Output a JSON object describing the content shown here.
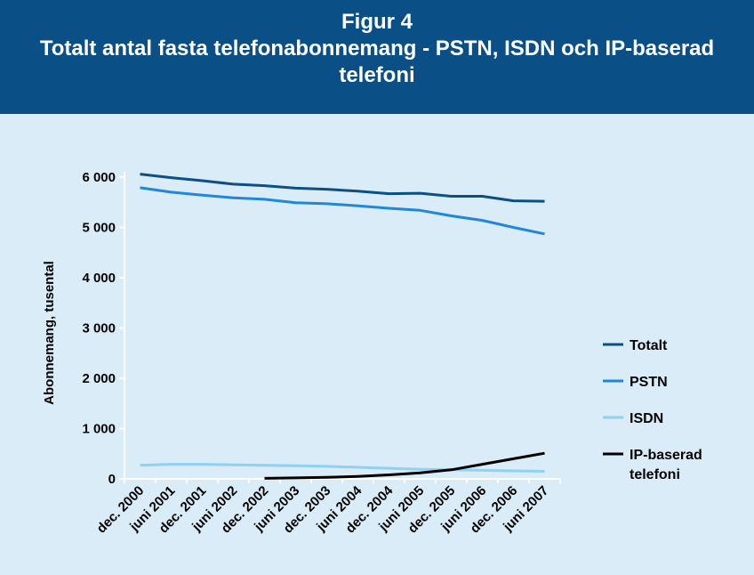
{
  "header": {
    "title": "Figur 4",
    "subtitle": "Totalt antal fasta telefonabonnemang - PSTN, ISDN och IP-baserad telefoni"
  },
  "colors": {
    "header_bg": "#0a4f86",
    "background": "#d9ecf8",
    "totalt": "#0b4f85",
    "pstn": "#1f88dc",
    "isdn": "#8fd1f5",
    "ip": "#000000"
  },
  "chart_data": {
    "type": "line",
    "title": "Totalt antal fasta telefonabonnemang - PSTN, ISDN och IP-baserad telefoni",
    "xlabel": "",
    "ylabel": "Abonnemang, tusental",
    "ylim": [
      0,
      6000
    ],
    "yticks": [
      0,
      1000,
      2000,
      3000,
      4000,
      5000,
      6000
    ],
    "ytick_labels": [
      "0",
      "1 000",
      "2 000",
      "3 000",
      "4 000",
      "5 000",
      "6 000"
    ],
    "categories": [
      "dec. 2000",
      "juni 2001",
      "dec. 2001",
      "juni 2002",
      "dec. 2002",
      "juni 2003",
      "dec. 2003",
      "juni 2004",
      "dec. 2004",
      "juni 2005",
      "dec. 2005",
      "juni 2006",
      "dec. 2006",
      "juni 2007"
    ],
    "grid": false,
    "legend_position": "right",
    "series": [
      {
        "name": "Totalt",
        "color": "#0b4f85",
        "values": [
          6060,
          5990,
          5930,
          5860,
          5830,
          5780,
          5760,
          5720,
          5670,
          5680,
          5620,
          5620,
          5530,
          5520
        ]
      },
      {
        "name": "PSTN",
        "color": "#1f88dc",
        "values": [
          5790,
          5700,
          5640,
          5590,
          5560,
          5490,
          5470,
          5430,
          5380,
          5340,
          5230,
          5140,
          5000,
          4870
        ]
      },
      {
        "name": "ISDN",
        "color": "#8fd1f5",
        "values": [
          270,
          290,
          290,
          280,
          270,
          260,
          250,
          230,
          210,
          190,
          180,
          170,
          160,
          150
        ]
      },
      {
        "name": "IP-baserad telefoni",
        "color": "#000000",
        "values": [
          null,
          null,
          null,
          null,
          10,
          20,
          30,
          50,
          80,
          120,
          180,
          290,
          400,
          510
        ]
      }
    ]
  }
}
